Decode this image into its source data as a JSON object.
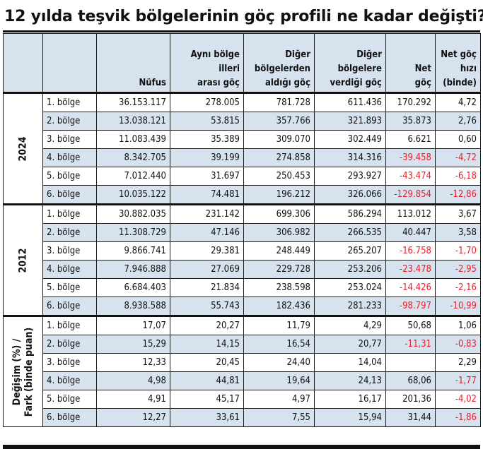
{
  "title": "12 yılda teşvik bölgelerinin göç profili ne kadar değişti?",
  "columns": [
    {
      "lines": [
        "Nüfus"
      ]
    },
    {
      "lines": [
        "Aynı bölge",
        "illeri",
        "arası göç"
      ]
    },
    {
      "lines": [
        "Diğer",
        "bölgelerden",
        "aldığı göç"
      ]
    },
    {
      "lines": [
        "Diğer",
        "bölgelere",
        "verdiği göç"
      ]
    },
    {
      "lines": [
        "Net",
        "göç"
      ]
    },
    {
      "lines": [
        "Net göç",
        "hızı",
        "(binde)"
      ]
    }
  ],
  "sections": [
    {
      "label_lines": [
        "2024"
      ],
      "rows": [
        {
          "label": "1. bölge",
          "cells": [
            "36.153.117",
            "278.005",
            "781.728",
            "611.436",
            "170.292",
            "4,72"
          ]
        },
        {
          "label": "2. bölge",
          "cells": [
            "13.038.121",
            "53.815",
            "357.766",
            "321.893",
            "35.873",
            "2,76"
          ]
        },
        {
          "label": "3. bölge",
          "cells": [
            "11.083.439",
            "35.389",
            "309.070",
            "302.449",
            "6.621",
            "0,60"
          ]
        },
        {
          "label": "4. bölge",
          "cells": [
            "8.342.705",
            "39.199",
            "274.858",
            "314.316",
            "-39.458",
            "-4,72"
          ]
        },
        {
          "label": "5. bölge",
          "cells": [
            "7.012.440",
            "31.697",
            "250.453",
            "293.927",
            "-43.474",
            "-6,18"
          ]
        },
        {
          "label": "6. bölge",
          "cells": [
            "10.035.122",
            "74.481",
            "196.212",
            "326.066",
            "-129.854",
            "-12,86"
          ]
        }
      ]
    },
    {
      "label_lines": [
        "2012"
      ],
      "rows": [
        {
          "label": "1. bölge",
          "cells": [
            "30.882.035",
            "231.142",
            "699.306",
            "586.294",
            "113.012",
            "3,67"
          ]
        },
        {
          "label": "2. bölge",
          "cells": [
            "11.308.729",
            "47.146",
            "306.982",
            "266.535",
            "40.447",
            "3,58"
          ]
        },
        {
          "label": "3. bölge",
          "cells": [
            "9.866.741",
            "29.381",
            "248.449",
            "265.207",
            "-16.758",
            "-1,70"
          ]
        },
        {
          "label": "4. bölge",
          "cells": [
            "7.946.888",
            "27.069",
            "229.728",
            "253.206",
            "-23.478",
            "-2,95"
          ]
        },
        {
          "label": "5. bölge",
          "cells": [
            "6.684.403",
            "21.834",
            "238.598",
            "253.024",
            "-14.426",
            "-2,16"
          ]
        },
        {
          "label": "6. bölge",
          "cells": [
            "8.938.588",
            "55.743",
            "182.436",
            "281.233",
            "-98.797",
            "-10,99"
          ]
        }
      ]
    },
    {
      "label_lines": [
        "Değişim (%) /",
        "Fark (binde puan)"
      ],
      "rows": [
        {
          "label": "1. bölge",
          "cells": [
            "17,07",
            "20,27",
            "11,79",
            "4,29",
            "50,68",
            "1,06"
          ]
        },
        {
          "label": "2. bölge",
          "cells": [
            "15,29",
            "14,15",
            "16,54",
            "20,77",
            "-11,31",
            "-0,83"
          ]
        },
        {
          "label": "3. bölge",
          "cells": [
            "12,33",
            "20,45",
            "24,40",
            "14,04",
            "",
            "2,29"
          ]
        },
        {
          "label": "4. bölge",
          "cells": [
            "4,98",
            "44,81",
            "19,64",
            "24,13",
            "68,06",
            "-1,77"
          ]
        },
        {
          "label": "5. bölge",
          "cells": [
            "4,91",
            "45,17",
            "4,97",
            "16,17",
            "201,36",
            "-4,02"
          ]
        },
        {
          "label": "6. bölge",
          "cells": [
            "12,27",
            "33,61",
            "7,55",
            "15,94",
            "31,44",
            "-1,86"
          ]
        }
      ]
    }
  ],
  "colors": {
    "header_bg": "#d7e2ef",
    "negative": "#e8202a",
    "rule": "#111111"
  }
}
